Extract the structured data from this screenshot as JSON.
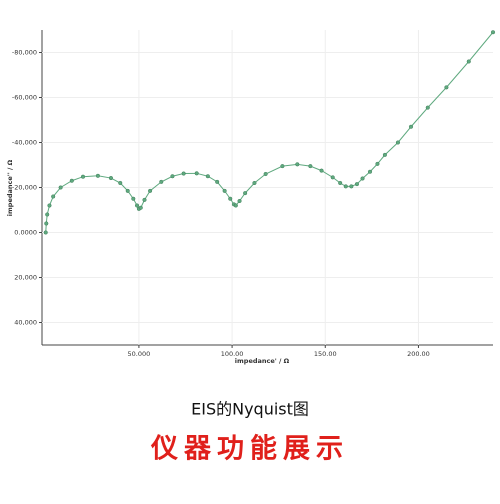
{
  "chart_data": {
    "type": "line",
    "caption": "EIS的Nyquist图",
    "banner": "仪器功能展示",
    "x_label": "impedance' / Ω",
    "y_label": "impedance'' / Ω",
    "x": [
      0,
      0.3,
      0.8,
      2,
      4,
      8,
      14,
      20,
      28,
      35,
      40,
      44,
      47,
      49,
      50,
      51,
      53,
      56,
      62,
      68,
      74,
      81,
      87,
      92,
      96,
      99,
      101,
      102,
      104,
      107,
      112,
      118,
      127,
      135,
      142,
      148,
      154,
      158,
      161,
      164,
      167,
      170,
      174,
      178,
      182,
      189,
      196,
      205,
      215,
      227,
      240
    ],
    "values": [
      0,
      -4,
      -8,
      -12,
      -16,
      -20,
      -23,
      -24.8,
      -25.2,
      -24.2,
      -22,
      -18.5,
      -15,
      -12,
      -10.5,
      -11,
      -14.5,
      -18.5,
      -22.5,
      -25,
      -26.2,
      -26.3,
      -25,
      -22.5,
      -18.5,
      -15,
      -12.5,
      -12,
      -14,
      -17.5,
      -22,
      -26,
      -29.5,
      -30.3,
      -29.5,
      -27.5,
      -24.5,
      -22,
      -20.5,
      -20.5,
      -21.5,
      -24,
      -27,
      -30.5,
      -34.5,
      -40,
      -47,
      -55.5,
      -64.5,
      -76,
      -89
    ],
    "color": "#5fa97f",
    "xlim": [
      -2,
      240
    ],
    "ylim": [
      50,
      -90
    ],
    "xticks": [
      {
        "value": 50,
        "label": "50.000"
      },
      {
        "value": 100,
        "label": "100.00"
      },
      {
        "value": 150,
        "label": "150.00"
      },
      {
        "value": 200,
        "label": "200.00"
      }
    ],
    "yticks": [
      {
        "value": -80,
        "label": "-80,000"
      },
      {
        "value": -60,
        "label": "-60,000"
      },
      {
        "value": -40,
        "label": "-40,000"
      },
      {
        "value": -20,
        "label": "-20,000"
      },
      {
        "value": 0,
        "label": "0.0000"
      },
      {
        "value": 20,
        "label": "20,000"
      },
      {
        "value": 40,
        "label": "40,000"
      }
    ],
    "grid": true
  }
}
